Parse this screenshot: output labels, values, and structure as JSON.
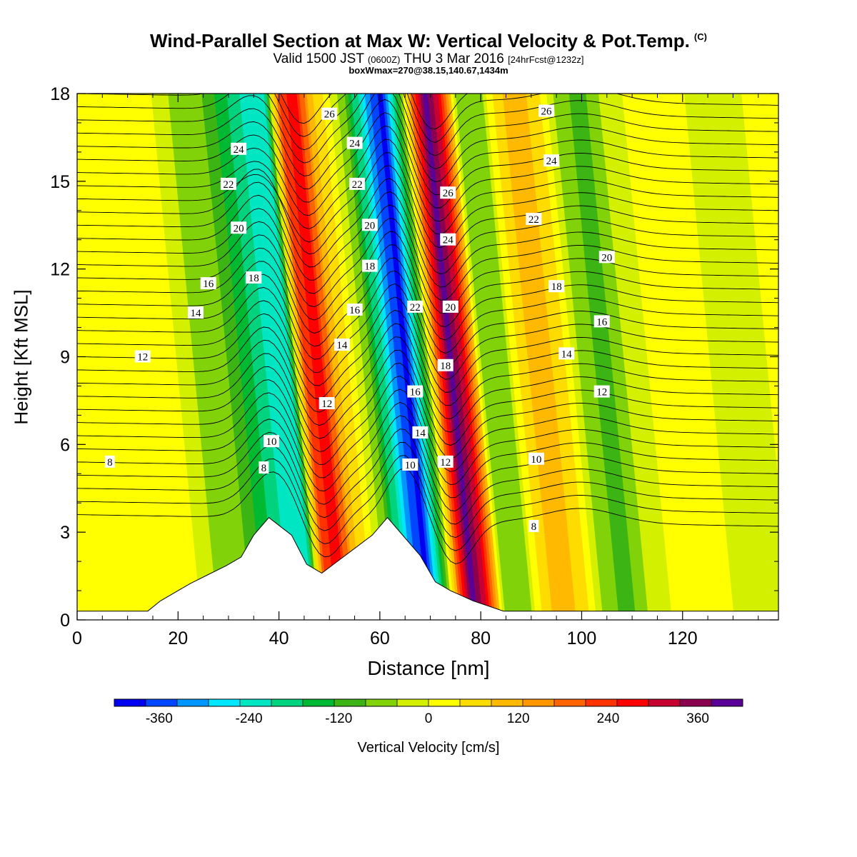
{
  "title": {
    "main": "Wind-Parallel Section at Max W: Vertical Velocity & Pot.Temp.",
    "copyright": "(C)",
    "valid_prefix": "Valid 1500 JST",
    "valid_utc": "(0600Z)",
    "valid_date": "THU 3 Mar 2016",
    "forecast": "[24hrFcst@1232z]",
    "box": "boxWmax=270@38.15,140.67,1434m"
  },
  "chart_data": {
    "type": "heatmap",
    "xlabel": "Distance [nm]",
    "ylabel": "Height [Kft MSL]",
    "xlim": [
      0,
      139
    ],
    "ylim": [
      0,
      18
    ],
    "x_ticks": [
      0,
      20,
      40,
      60,
      80,
      100,
      120
    ],
    "y_ticks": [
      0,
      3,
      6,
      9,
      12,
      15,
      18
    ],
    "colorbar": {
      "label": "Vertical Velocity [cm/s]",
      "range": [
        -420,
        420
      ],
      "step": 40,
      "tick_labels": [
        -360,
        -240,
        -120,
        0,
        120,
        240,
        360
      ],
      "colors": [
        "#0000f0",
        "#0046ff",
        "#0096ff",
        "#00e6ff",
        "#00e6c3",
        "#00d27d",
        "#00b932",
        "#3cb414",
        "#82d20a",
        "#d2f000",
        "#ffff00",
        "#ffdc00",
        "#ffb900",
        "#ff9600",
        "#ff6400",
        "#ff3200",
        "#ff0000",
        "#c80032",
        "#8c0050",
        "#5a0096"
      ]
    },
    "vertical_velocity_columns": [
      {
        "x": 0,
        "w": 0
      },
      {
        "x": 8,
        "w": 0
      },
      {
        "x": 18,
        "w": 0
      },
      {
        "x": 23,
        "w": -60
      },
      {
        "x": 28,
        "w": -80
      },
      {
        "x": 33,
        "w": -150
      },
      {
        "x": 38,
        "w": -240
      },
      {
        "x": 42,
        "w": -220
      },
      {
        "x": 45,
        "w": 200
      },
      {
        "x": 48,
        "w": 240
      },
      {
        "x": 51,
        "w": 80
      },
      {
        "x": 55,
        "w": -20
      },
      {
        "x": 58,
        "w": -100
      },
      {
        "x": 62,
        "w": -300
      },
      {
        "x": 65,
        "w": -400
      },
      {
        "x": 68,
        "w": -200
      },
      {
        "x": 71,
        "w": 120
      },
      {
        "x": 74,
        "w": 360
      },
      {
        "x": 77,
        "w": 240
      },
      {
        "x": 80,
        "w": -60
      },
      {
        "x": 84,
        "w": -100
      },
      {
        "x": 88,
        "w": 40
      },
      {
        "x": 92,
        "w": 90
      },
      {
        "x": 96,
        "w": 30
      },
      {
        "x": 100,
        "w": -80
      },
      {
        "x": 105,
        "w": -120
      },
      {
        "x": 110,
        "w": -40
      },
      {
        "x": 116,
        "w": 0
      },
      {
        "x": 124,
        "w": -10
      },
      {
        "x": 132,
        "w": -60
      },
      {
        "x": 139,
        "w": 0
      }
    ],
    "theta_contour_labels": [
      {
        "label": "8",
        "x": 6.5,
        "y": 5.4
      },
      {
        "label": "12",
        "x": 13,
        "y": 9.0
      },
      {
        "label": "14",
        "x": 23.5,
        "y": 10.5
      },
      {
        "label": "16",
        "x": 26,
        "y": 11.5
      },
      {
        "label": "20",
        "x": 32,
        "y": 13.4
      },
      {
        "label": "22",
        "x": 30,
        "y": 14.9
      },
      {
        "label": "24",
        "x": 32,
        "y": 16.1
      },
      {
        "label": "18",
        "x": 35,
        "y": 11.7
      },
      {
        "label": "10",
        "x": 38.5,
        "y": 6.1
      },
      {
        "label": "8",
        "x": 37,
        "y": 5.2
      },
      {
        "label": "26",
        "x": 50,
        "y": 17.3
      },
      {
        "label": "24",
        "x": 55,
        "y": 16.3
      },
      {
        "label": "22",
        "x": 55.5,
        "y": 14.9
      },
      {
        "label": "20",
        "x": 58,
        "y": 13.5
      },
      {
        "label": "18",
        "x": 58,
        "y": 12.1
      },
      {
        "label": "16",
        "x": 55,
        "y": 10.6
      },
      {
        "label": "14",
        "x": 52.5,
        "y": 9.4
      },
      {
        "label": "12",
        "x": 49.5,
        "y": 7.4
      },
      {
        "label": "26",
        "x": 73.5,
        "y": 14.6
      },
      {
        "label": "24",
        "x": 73.5,
        "y": 13.0
      },
      {
        "label": "22",
        "x": 67,
        "y": 10.7
      },
      {
        "label": "20",
        "x": 74,
        "y": 10.7
      },
      {
        "label": "18",
        "x": 73,
        "y": 8.7
      },
      {
        "label": "16",
        "x": 67,
        "y": 7.8
      },
      {
        "label": "14",
        "x": 68,
        "y": 6.4
      },
      {
        "label": "10",
        "x": 66,
        "y": 5.3
      },
      {
        "label": "12",
        "x": 73,
        "y": 5.4
      },
      {
        "label": "26",
        "x": 93,
        "y": 17.4
      },
      {
        "label": "24",
        "x": 94,
        "y": 15.7
      },
      {
        "label": "22",
        "x": 90.5,
        "y": 13.7
      },
      {
        "label": "20",
        "x": 105,
        "y": 12.4
      },
      {
        "label": "18",
        "x": 95,
        "y": 11.4
      },
      {
        "label": "16",
        "x": 104,
        "y": 10.2
      },
      {
        "label": "14",
        "x": 97,
        "y": 9.1
      },
      {
        "label": "12",
        "x": 104,
        "y": 7.8
      },
      {
        "label": "10",
        "x": 91,
        "y": 5.5
      },
      {
        "label": "8",
        "x": 90.5,
        "y": 3.2
      }
    ],
    "terrain_top": [
      {
        "x": 0,
        "y": 0.3
      },
      {
        "x": 13,
        "y": 0.3
      },
      {
        "x": 14,
        "y": 0.3
      },
      {
        "x": 16.5,
        "y": 0.65
      },
      {
        "x": 19.5,
        "y": 0.95
      },
      {
        "x": 22.5,
        "y": 1.25
      },
      {
        "x": 26,
        "y": 1.55
      },
      {
        "x": 29.5,
        "y": 1.85
      },
      {
        "x": 32.5,
        "y": 2.15
      },
      {
        "x": 35,
        "y": 2.9
      },
      {
        "x": 38,
        "y": 3.5
      },
      {
        "x": 42.5,
        "y": 2.9
      },
      {
        "x": 45.5,
        "y": 1.9
      },
      {
        "x": 48.5,
        "y": 1.6
      },
      {
        "x": 58.5,
        "y": 2.9
      },
      {
        "x": 61.5,
        "y": 3.5
      },
      {
        "x": 68,
        "y": 2.2
      },
      {
        "x": 71,
        "y": 1.3
      },
      {
        "x": 74,
        "y": 1.0
      },
      {
        "x": 78.5,
        "y": 0.65
      },
      {
        "x": 84.5,
        "y": 0.3
      },
      {
        "x": 139,
        "y": 0.3
      }
    ]
  }
}
